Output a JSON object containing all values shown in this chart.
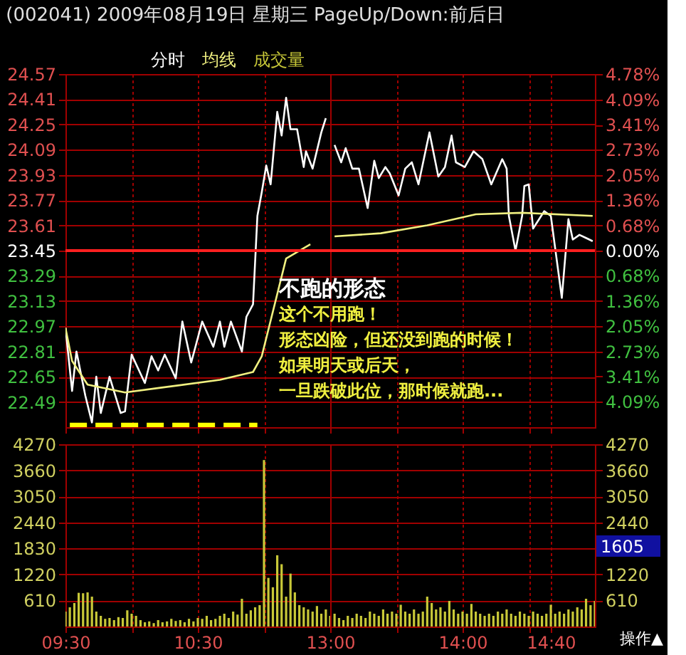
{
  "chart_data": [
    {
      "type": "line",
      "title": "(002041) 2009年08月19日 星期三 PageUp/Down:前后日",
      "grid": true,
      "tick_labels": "y",
      "xlim": [
        9.5,
        11.5
      ],
      "xticks": [
        {
          "value": 9.5,
          "label": null
        },
        {
          "value": 10,
          "label": null
        },
        {
          "value": 10.5,
          "label": null
        },
        {
          "value": 11,
          "label": null
        }
      ],
      "ylim": [
        22.33,
        24.57
      ],
      "yticks": [
        24.57,
        24.41,
        24.25,
        24.09,
        23.93,
        23.77,
        23.61,
        23.45,
        23.29,
        23.13,
        22.97,
        22.81,
        22.65,
        22.49
      ],
      "ref_lines": [
        {
          "axis": "y",
          "value": 23.45,
          "color": "#ff2020"
        }
      ],
      "series": [
        {
          "name": "分时",
          "color": "#ffffff",
          "x": [
            9.5,
            9.55,
            9.583,
            9.65,
            9.7,
            9.733,
            9.767,
            9.833,
            9.917,
            9.95,
            10,
            10.1,
            10.15,
            10.2,
            10.25,
            10.333,
            10.383,
            10.45,
            10.533,
            10.617,
            10.667,
            10.7,
            10.75,
            10.833,
            10.867,
            10.917,
            10.95,
            10.983,
            11.017,
            11.05,
            11.1,
            11.133,
            11.167,
            11.2,
            11.25,
            11.3,
            11.317,
            11.367,
            11.433,
            11.467
          ],
          "values": [
            22.96,
            22.56,
            22.81,
            22.53,
            22.36,
            22.65,
            22.42,
            22.65,
            22.42,
            22.43,
            22.79,
            22.61,
            22.78,
            22.69,
            22.79,
            22.64,
            23.0,
            22.74,
            23.0,
            22.84,
            23.0,
            22.84,
            23.0,
            22.81,
            23.03,
            23.11,
            23.67,
            23.82,
            23.99,
            23.87,
            24.33,
            24.18,
            24.42,
            24.22,
            24.22,
            23.98,
            24.08,
            23.97,
            24.2,
            24.29
          ]
        },
        {
          "name": "均线",
          "color": "#f0f080",
          "x": [
            9.5,
            9.55,
            9.667,
            9.95,
            10.217,
            10.667,
            10.917,
            10.983,
            11.167,
            11.35
          ],
          "values": [
            22.96,
            22.75,
            22.6,
            22.55,
            22.58,
            22.63,
            22.68,
            22.78,
            23.4,
            23.49
          ]
        },
        {
          "color": "#ffff00",
          "line_style": "dashed",
          "x": [
            9.533,
            10.95
          ],
          "values": [
            22.34,
            22.34
          ]
        }
      ]
    },
    {
      "type": "line",
      "grid": true,
      "tick_labels": false,
      "xlim": [
        13,
        15
      ],
      "xticks": [
        {
          "value": 13,
          "label": null
        },
        {
          "value": 13.5,
          "label": null
        },
        {
          "value": 14,
          "label": null
        },
        {
          "value": 14.5,
          "label": null
        },
        {
          "value": 14.667,
          "label": null
        }
      ],
      "ylim": [
        22.33,
        24.57
      ],
      "yticks": [
        24.57,
        24.41,
        24.25,
        24.09,
        23.93,
        23.77,
        23.61,
        23.45,
        23.29,
        23.13,
        22.97,
        22.81,
        22.65,
        22.49
      ],
      "y2lim": [
        -4.78,
        4.78
      ],
      "y2ticks": [
        {
          "value": 4.78,
          "label": "4.78%"
        },
        {
          "value": 4.09,
          "label": "4.09%"
        },
        {
          "value": 3.41,
          "label": "3.41%"
        },
        {
          "value": 2.73,
          "label": "2.73%"
        },
        {
          "value": 2.05,
          "label": "2.05%"
        },
        {
          "value": 1.36,
          "label": "1.36%"
        },
        {
          "value": 0.68,
          "label": "0.68%"
        },
        {
          "value": 0,
          "label": "0.00%"
        },
        {
          "value": -0.68,
          "label": "0.68%"
        },
        {
          "value": -1.36,
          "label": "1.36%"
        },
        {
          "value": -2.05,
          "label": "2.05%"
        },
        {
          "value": -2.73,
          "label": "2.73%"
        },
        {
          "value": -3.41,
          "label": "3.41%"
        },
        {
          "value": -4.09,
          "label": "4.09%"
        }
      ],
      "ref_lines": [
        {
          "axis": "y",
          "value": 23.45,
          "color": "#ff2020"
        }
      ],
      "series": [
        {
          "color": "#ffffff",
          "x": [
            13.033,
            13.083,
            13.117,
            13.167,
            13.217,
            13.283,
            13.333,
            13.367,
            13.417,
            13.45,
            13.517,
            13.567,
            13.617,
            13.667,
            13.75,
            13.817,
            13.867,
            13.917,
            13.95,
            14.017,
            14.083,
            14.15,
            14.217,
            14.3,
            14.333,
            14.35,
            14.4,
            14.45,
            14.467,
            14.5,
            14.533,
            14.617,
            14.667,
            14.75,
            14.8,
            14.833,
            14.883,
            14.933,
            14.983
          ],
          "values": [
            24.12,
            24.01,
            24.1,
            23.97,
            23.97,
            23.72,
            24.02,
            23.91,
            23.98,
            23.94,
            23.8,
            23.97,
            24.01,
            23.87,
            24.2,
            23.92,
            23.98,
            24.18,
            24.01,
            23.98,
            24.08,
            24.03,
            23.87,
            24.03,
            23.97,
            23.67,
            23.45,
            23.67,
            23.86,
            23.87,
            23.59,
            23.7,
            23.67,
            23.15,
            23.65,
            23.52,
            23.55,
            23.53,
            23.51
          ]
        },
        {
          "color": "#f0f080",
          "x": [
            13.033,
            13.383,
            13.733,
            14.1,
            14.45,
            14.983
          ],
          "values": [
            23.54,
            23.56,
            23.61,
            23.68,
            23.69,
            23.67
          ]
        }
      ],
      "annotations": [
        "不跑的形态",
        "这个不用跑！",
        "形态凶险，但还没到跑的时候！",
        "如果明天或后天，",
        "一旦跌破此位，那时候就跑..."
      ]
    },
    {
      "type": "bar",
      "grid": true,
      "xlim": [
        9.5,
        11.5
      ],
      "xticks": [
        {
          "value": 9.5,
          "label": "09:30"
        },
        {
          "value": 10,
          "label": null
        },
        {
          "value": 10.5,
          "label": "10:30"
        },
        {
          "value": 11,
          "label": null
        }
      ],
      "ylim": [
        0,
        4270
      ],
      "yticks": [
        610,
        1220,
        1830,
        2440,
        3050,
        3660,
        4270
      ],
      "series": [
        {
          "name": "成交量",
          "color": "#c8c838",
          "x": [
            9.5,
            9.533,
            9.567,
            9.6,
            9.633,
            9.667,
            9.7,
            9.733,
            9.767,
            9.8,
            9.833,
            9.867,
            9.9,
            9.933,
            9.967,
            10,
            10.033,
            10.067,
            10.1,
            10.133,
            10.167,
            10.2,
            10.233,
            10.267,
            10.3,
            10.333,
            10.367,
            10.4,
            10.433,
            10.467,
            10.5,
            10.533,
            10.567,
            10.6,
            10.633,
            10.667,
            10.7,
            10.733,
            10.767,
            10.8,
            10.833,
            10.867,
            10.9,
            10.933,
            10.967,
            11,
            11.033,
            11.067,
            11.1,
            11.133,
            11.167,
            11.2,
            11.233,
            11.267,
            11.3,
            11.333,
            11.367,
            11.4,
            11.433,
            11.467,
            11.5
          ],
          "values": [
            350,
            450,
            550,
            790,
            780,
            800,
            700,
            350,
            250,
            180,
            200,
            150,
            220,
            200,
            380,
            300,
            250,
            150,
            100,
            120,
            80,
            150,
            100,
            120,
            180,
            130,
            150,
            100,
            180,
            120,
            200,
            180,
            250,
            150,
            180,
            250,
            300,
            200,
            350,
            280,
            650,
            300,
            380,
            450,
            500,
            3900,
            1140,
            920,
            1670,
            1460,
            700,
            1240,
            800,
            500,
            450,
            400,
            350,
            480,
            300,
            400,
            250
          ]
        }
      ]
    },
    {
      "type": "bar",
      "grid": true,
      "xlim": [
        13,
        15
      ],
      "xticks": [
        {
          "value": 13,
          "label": "13:00"
        },
        {
          "value": 13.5,
          "label": null
        },
        {
          "value": 14,
          "label": "14:00"
        },
        {
          "value": 14.5,
          "label": null
        },
        {
          "value": 14.667,
          "label": "14:40"
        }
      ],
      "y2lim": [
        0,
        4270
      ],
      "y2ticks": [
        610,
        1220,
        {
          "value": 1830,
          "label": null
        },
        2440,
        3050,
        3660,
        4270
      ],
      "series": [
        {
          "axis": "y2",
          "color": "#c8c838",
          "x": [
            13.033,
            13.067,
            13.1,
            13.133,
            13.167,
            13.2,
            13.233,
            13.267,
            13.3,
            13.333,
            13.367,
            13.4,
            13.433,
            13.467,
            13.5,
            13.533,
            13.567,
            13.6,
            13.633,
            13.667,
            13.7,
            13.733,
            13.767,
            13.8,
            13.833,
            13.867,
            13.9,
            13.933,
            13.967,
            14,
            14.033,
            14.067,
            14.1,
            14.133,
            14.167,
            14.2,
            14.233,
            14.267,
            14.3,
            14.333,
            14.367,
            14.4,
            14.433,
            14.467,
            14.5,
            14.533,
            14.567,
            14.6,
            14.633,
            14.667,
            14.7,
            14.733,
            14.767,
            14.8,
            14.833,
            14.867,
            14.9,
            14.933,
            14.967,
            15
          ],
          "values": [
            300,
            200,
            150,
            250,
            200,
            300,
            250,
            200,
            350,
            300,
            250,
            400,
            300,
            350,
            300,
            510,
            350,
            300,
            400,
            300,
            350,
            700,
            550,
            400,
            450,
            350,
            600,
            400,
            300,
            350,
            300,
            530,
            350,
            300,
            250,
            300,
            250,
            350,
            300,
            400,
            300,
            250,
            350,
            300,
            250,
            350,
            300,
            250,
            300,
            510,
            300,
            350,
            300,
            400,
            350,
            450,
            400,
            650,
            500,
            600
          ]
        }
      ],
      "annotations": [
        "1605",
        "操作▲"
      ]
    }
  ]
}
